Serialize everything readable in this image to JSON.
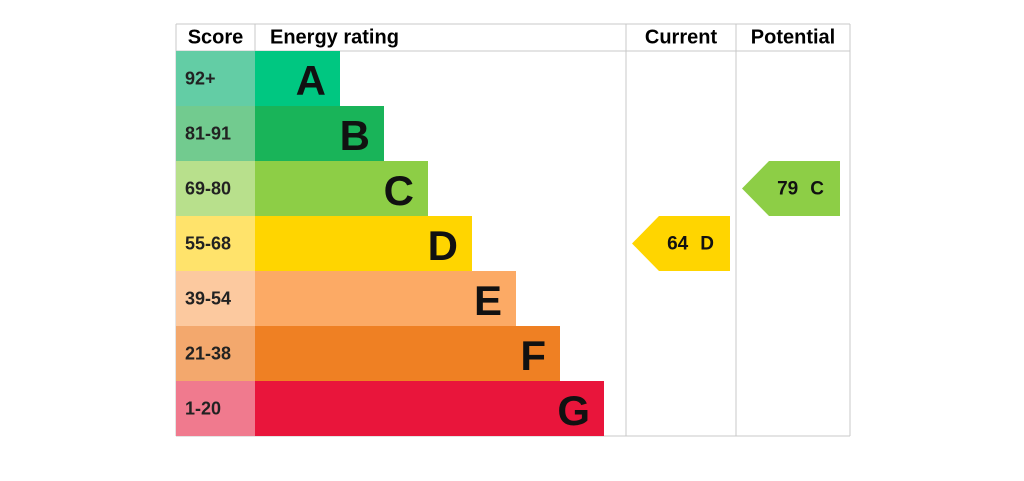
{
  "header": {
    "score": "Score",
    "rating": "Energy rating",
    "current": "Current",
    "potential": "Potential"
  },
  "bands": [
    {
      "score": "92+",
      "letter": "A",
      "color": "#00c781",
      "score_color": "#63cda5"
    },
    {
      "score": "81-91",
      "letter": "B",
      "color": "#19b459",
      "score_color": "#72cb8f"
    },
    {
      "score": "69-80",
      "letter": "C",
      "color": "#8dce46",
      "score_color": "#b8e08c"
    },
    {
      "score": "55-68",
      "letter": "D",
      "color": "#ffd500",
      "score_color": "#ffe36b"
    },
    {
      "score": "39-54",
      "letter": "E",
      "color": "#fcaa65",
      "score_color": "#fcc99f"
    },
    {
      "score": "21-38",
      "letter": "F",
      "color": "#ef8023",
      "score_color": "#f3a86d"
    },
    {
      "score": "1-20",
      "letter": "G",
      "color": "#e9153b",
      "score_color": "#f07a8e"
    }
  ],
  "current": {
    "score": 64,
    "letter": "D"
  },
  "potential": {
    "score": 79,
    "letter": "C"
  }
}
